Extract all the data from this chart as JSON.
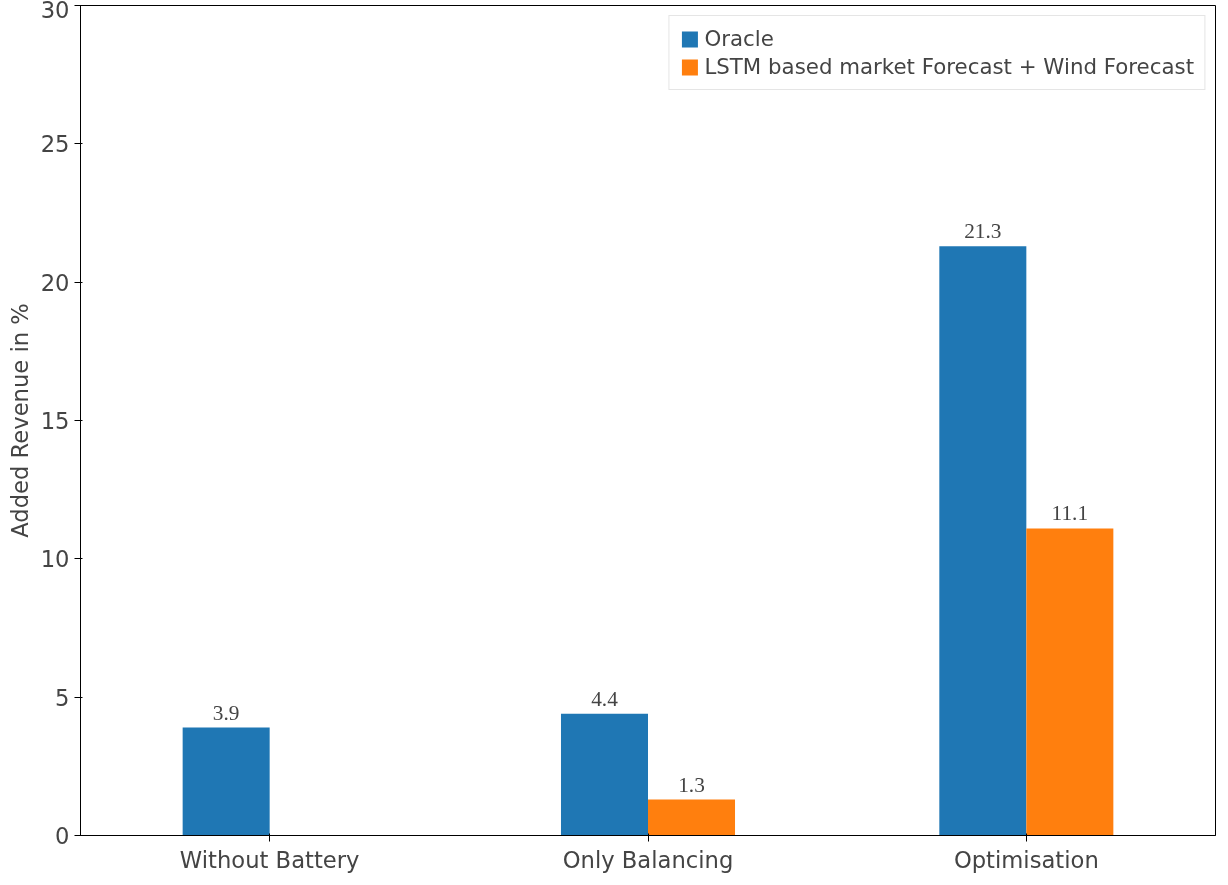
{
  "chart_data": {
    "type": "bar",
    "ylabel": "Added Revenue in %",
    "categories": [
      "Without Battery",
      "Only Balancing",
      "Optimisation"
    ],
    "series": [
      {
        "name": "Oracle",
        "color": "#1f77b4",
        "values": [
          3.9,
          4.4,
          21.3
        ]
      },
      {
        "name": "LSTM based market Forecast + Wind Forecast",
        "color": "#ff7f0e",
        "values": [
          null,
          1.3,
          11.1
        ]
      }
    ],
    "ylim": [
      0,
      30
    ],
    "yticks": [
      0,
      5,
      10,
      15,
      20,
      25,
      30
    ],
    "data_labels": true,
    "grid": false,
    "legend": "top right"
  }
}
